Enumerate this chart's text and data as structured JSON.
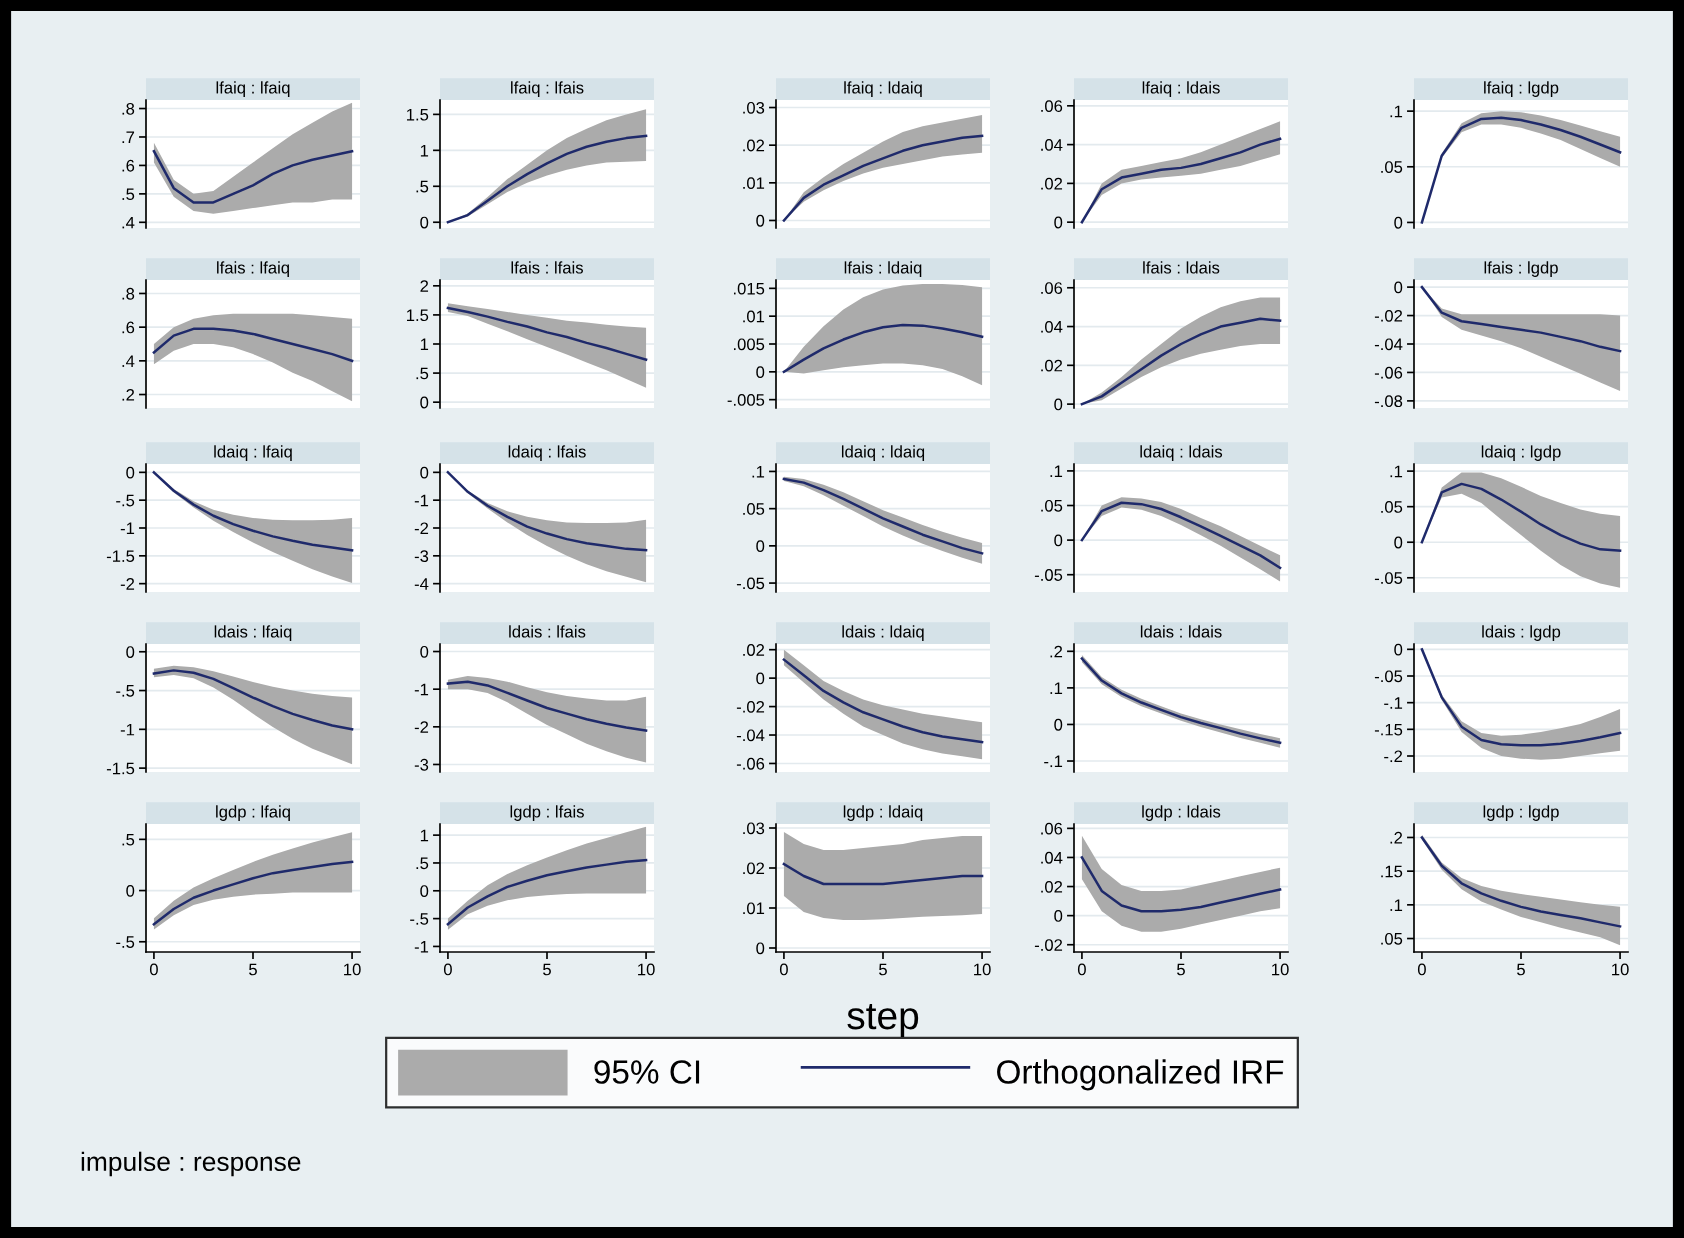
{
  "chart_data": [
    {
      "type": "line",
      "title": "lfaiq : lfaiq",
      "x": [
        0,
        1,
        2,
        3,
        4,
        5,
        6,
        7,
        8,
        9,
        10
      ],
      "xlim": [
        -0.4,
        10.4
      ],
      "xticks": [
        0,
        5,
        10
      ],
      "ylim": [
        0.38,
        0.83
      ],
      "yticks": [
        {
          "value": 0.4,
          "label": ".4"
        },
        {
          "value": 0.5,
          "label": ".5"
        },
        {
          "value": 0.6,
          "label": ".6"
        },
        {
          "value": 0.7,
          "label": ".7"
        },
        {
          "value": 0.8,
          "label": ".8"
        }
      ],
      "grid": "y",
      "tick_labels": "y",
      "series": [
        {
          "color": "#1f2a6b",
          "values": [
            0.65,
            0.52,
            0.47,
            0.47,
            0.5,
            0.53,
            0.57,
            0.6,
            0.62,
            0.635,
            0.65
          ],
          "lower": [
            0.61,
            0.49,
            0.44,
            0.43,
            0.44,
            0.45,
            0.46,
            0.47,
            0.47,
            0.48,
            0.48
          ],
          "upper": [
            0.68,
            0.55,
            0.5,
            0.51,
            0.56,
            0.61,
            0.66,
            0.71,
            0.75,
            0.79,
            0.82
          ]
        }
      ]
    },
    {
      "type": "line",
      "title": "lfaiq : lfais",
      "x": [
        0,
        1,
        2,
        3,
        4,
        5,
        6,
        7,
        8,
        9,
        10
      ],
      "xlim": [
        -0.4,
        10.4
      ],
      "xticks": [
        0,
        5,
        10
      ],
      "ylim": [
        -0.08,
        1.7
      ],
      "yticks": [
        0,
        {
          "value": 0.5,
          "label": ".5"
        },
        1,
        1.5
      ],
      "grid": "y",
      "tick_labels": "y",
      "series": [
        {
          "color": "#1f2a6b",
          "values": [
            0,
            0.1,
            0.3,
            0.5,
            0.67,
            0.82,
            0.95,
            1.05,
            1.12,
            1.17,
            1.2
          ],
          "lower": [
            0,
            0.08,
            0.25,
            0.42,
            0.55,
            0.65,
            0.73,
            0.79,
            0.83,
            0.84,
            0.85
          ],
          "upper": [
            0,
            0.12,
            0.35,
            0.6,
            0.8,
            1.0,
            1.17,
            1.3,
            1.42,
            1.5,
            1.57
          ]
        }
      ]
    },
    {
      "type": "line",
      "title": "lfaiq : ldaiq",
      "x": [
        0,
        1,
        2,
        3,
        4,
        5,
        6,
        7,
        8,
        9,
        10
      ],
      "xlim": [
        -0.4,
        10.4
      ],
      "xticks": [
        0,
        5,
        10
      ],
      "ylim": [
        -0.002,
        0.032
      ],
      "yticks": [
        0,
        {
          "value": 0.01,
          "label": ".01"
        },
        {
          "value": 0.02,
          "label": ".02"
        },
        {
          "value": 0.03,
          "label": ".03"
        }
      ],
      "grid": "y",
      "tick_labels": "y",
      "series": [
        {
          "color": "#1f2a6b",
          "values": [
            0,
            0.006,
            0.0095,
            0.012,
            0.0145,
            0.0165,
            0.0185,
            0.02,
            0.021,
            0.022,
            0.0225
          ],
          "lower": [
            0,
            0.005,
            0.008,
            0.0105,
            0.0125,
            0.014,
            0.015,
            0.016,
            0.017,
            0.0175,
            0.018
          ],
          "upper": [
            0,
            0.0075,
            0.0115,
            0.015,
            0.018,
            0.021,
            0.0235,
            0.025,
            0.026,
            0.027,
            0.028
          ]
        }
      ]
    },
    {
      "type": "line",
      "title": "lfaiq : ldais",
      "x": [
        0,
        1,
        2,
        3,
        4,
        5,
        6,
        7,
        8,
        9,
        10
      ],
      "xlim": [
        -0.4,
        10.4
      ],
      "xticks": [
        0,
        5,
        10
      ],
      "ylim": [
        -0.003,
        0.063
      ],
      "yticks": [
        0,
        {
          "value": 0.02,
          "label": ".02"
        },
        {
          "value": 0.04,
          "label": ".04"
        },
        {
          "value": 0.06,
          "label": ".06"
        }
      ],
      "grid": "y",
      "tick_labels": "y",
      "series": [
        {
          "color": "#1f2a6b",
          "values": [
            0,
            0.017,
            0.023,
            0.025,
            0.027,
            0.028,
            0.03,
            0.033,
            0.036,
            0.04,
            0.043
          ],
          "lower": [
            0,
            0.014,
            0.02,
            0.022,
            0.023,
            0.024,
            0.025,
            0.027,
            0.029,
            0.032,
            0.035
          ],
          "upper": [
            0,
            0.02,
            0.027,
            0.029,
            0.031,
            0.033,
            0.036,
            0.04,
            0.044,
            0.048,
            0.052
          ]
        }
      ]
    },
    {
      "type": "line",
      "title": "lfaiq : lgdp",
      "x": [
        0,
        1,
        2,
        3,
        4,
        5,
        6,
        7,
        8,
        9,
        10
      ],
      "xlim": [
        -0.4,
        10.4
      ],
      "xticks": [
        0,
        5,
        10
      ],
      "ylim": [
        -0.005,
        0.11
      ],
      "yticks": [
        0,
        {
          "value": 0.05,
          "label": ".05"
        },
        {
          "value": 0.1,
          "label": ".1"
        }
      ],
      "grid": "y",
      "tick_labels": "y",
      "series": [
        {
          "color": "#1f2a6b",
          "values": [
            0,
            0.06,
            0.085,
            0.093,
            0.094,
            0.092,
            0.088,
            0.083,
            0.077,
            0.07,
            0.063
          ],
          "lower": [
            0,
            0.058,
            0.081,
            0.088,
            0.088,
            0.085,
            0.08,
            0.074,
            0.066,
            0.058,
            0.05
          ],
          "upper": [
            0,
            0.062,
            0.089,
            0.098,
            0.1,
            0.099,
            0.096,
            0.092,
            0.087,
            0.082,
            0.077
          ]
        }
      ]
    },
    {
      "type": "line",
      "title": "lfais : lfaiq",
      "x": [
        0,
        1,
        2,
        3,
        4,
        5,
        6,
        7,
        8,
        9,
        10
      ],
      "xlim": [
        -0.4,
        10.4
      ],
      "xticks": [
        0,
        5,
        10
      ],
      "ylim": [
        0.12,
        0.88
      ],
      "yticks": [
        {
          "value": 0.2,
          "label": ".2"
        },
        {
          "value": 0.4,
          "label": ".4"
        },
        {
          "value": 0.6,
          "label": ".6"
        },
        {
          "value": 0.8,
          "label": ".8"
        }
      ],
      "grid": "y",
      "tick_labels": "y",
      "series": [
        {
          "color": "#1f2a6b",
          "values": [
            0.45,
            0.55,
            0.59,
            0.59,
            0.58,
            0.56,
            0.53,
            0.5,
            0.47,
            0.44,
            0.4
          ],
          "lower": [
            0.38,
            0.46,
            0.5,
            0.5,
            0.48,
            0.44,
            0.39,
            0.33,
            0.28,
            0.22,
            0.16
          ],
          "upper": [
            0.5,
            0.6,
            0.65,
            0.67,
            0.68,
            0.68,
            0.68,
            0.68,
            0.67,
            0.66,
            0.65
          ]
        }
      ]
    },
    {
      "type": "line",
      "title": "lfais : lfais",
      "x": [
        0,
        1,
        2,
        3,
        4,
        5,
        6,
        7,
        8,
        9,
        10
      ],
      "xlim": [
        -0.4,
        10.4
      ],
      "xticks": [
        0,
        5,
        10
      ],
      "ylim": [
        -0.1,
        2.1
      ],
      "yticks": [
        0,
        {
          "value": 0.5,
          "label": ".5"
        },
        1,
        1.5,
        2
      ],
      "grid": "y",
      "tick_labels": "y",
      "series": [
        {
          "color": "#1f2a6b",
          "values": [
            1.62,
            1.55,
            1.47,
            1.38,
            1.3,
            1.2,
            1.12,
            1.02,
            0.93,
            0.83,
            0.73
          ],
          "lower": [
            1.55,
            1.48,
            1.35,
            1.22,
            1.08,
            0.95,
            0.82,
            0.68,
            0.55,
            0.4,
            0.25
          ],
          "upper": [
            1.7,
            1.65,
            1.6,
            1.55,
            1.5,
            1.45,
            1.4,
            1.37,
            1.33,
            1.3,
            1.28
          ]
        }
      ]
    },
    {
      "type": "line",
      "title": "lfais : ldaiq",
      "x": [
        0,
        1,
        2,
        3,
        4,
        5,
        6,
        7,
        8,
        9,
        10
      ],
      "xlim": [
        -0.4,
        10.4
      ],
      "xticks": [
        0,
        5,
        10
      ],
      "ylim": [
        -0.0065,
        0.0165
      ],
      "yticks": [
        {
          "value": -0.005,
          "label": "-.005"
        },
        0,
        {
          "value": 0.005,
          "label": ".005"
        },
        {
          "value": 0.01,
          "label": ".01"
        },
        {
          "value": 0.015,
          "label": ".015"
        }
      ],
      "grid": "y",
      "tick_labels": "y",
      "series": [
        {
          "color": "#1f2a6b",
          "values": [
            0,
            0.0022,
            0.0042,
            0.0058,
            0.0071,
            0.008,
            0.0084,
            0.0083,
            0.0078,
            0.0071,
            0.0063
          ],
          "lower": [
            0,
            -0.0003,
            0.0003,
            0.0008,
            0.0012,
            0.0015,
            0.0015,
            0.0012,
            0.0005,
            -0.0008,
            -0.0024
          ],
          "upper": [
            0,
            0.0045,
            0.0082,
            0.0112,
            0.0134,
            0.0148,
            0.0155,
            0.0158,
            0.0158,
            0.0156,
            0.0152
          ]
        }
      ]
    },
    {
      "type": "line",
      "title": "lfais : ldais",
      "x": [
        0,
        1,
        2,
        3,
        4,
        5,
        6,
        7,
        8,
        9,
        10
      ],
      "xlim": [
        -0.4,
        10.4
      ],
      "xticks": [
        0,
        5,
        10
      ],
      "ylim": [
        -0.002,
        0.064
      ],
      "yticks": [
        0,
        {
          "value": 0.02,
          "label": ".02"
        },
        {
          "value": 0.04,
          "label": ".04"
        },
        {
          "value": 0.06,
          "label": ".06"
        }
      ],
      "grid": "y",
      "tick_labels": "y",
      "series": [
        {
          "color": "#1f2a6b",
          "values": [
            0,
            0.004,
            0.011,
            0.018,
            0.025,
            0.031,
            0.036,
            0.04,
            0.042,
            0.044,
            0.043
          ],
          "lower": [
            0,
            0.002,
            0.008,
            0.014,
            0.019,
            0.023,
            0.026,
            0.028,
            0.03,
            0.031,
            0.031
          ],
          "upper": [
            0,
            0.006,
            0.014,
            0.023,
            0.031,
            0.039,
            0.045,
            0.05,
            0.053,
            0.055,
            0.055
          ]
        }
      ]
    },
    {
      "type": "line",
      "title": "lfais : lgdp",
      "x": [
        0,
        1,
        2,
        3,
        4,
        5,
        6,
        7,
        8,
        9,
        10
      ],
      "xlim": [
        -0.4,
        10.4
      ],
      "xticks": [
        0,
        5,
        10
      ],
      "ylim": [
        -0.085,
        0.005
      ],
      "yticks": [
        0,
        {
          "value": -0.02,
          "label": "-.02"
        },
        {
          "value": -0.04,
          "label": "-.04"
        },
        {
          "value": -0.06,
          "label": "-.06"
        },
        {
          "value": -0.08,
          "label": "-.08"
        }
      ],
      "grid": "y",
      "tick_labels": "y",
      "series": [
        {
          "color": "#1f2a6b",
          "values": [
            0,
            -0.018,
            -0.024,
            -0.026,
            -0.028,
            -0.03,
            -0.032,
            -0.035,
            -0.038,
            -0.042,
            -0.045
          ],
          "lower": [
            0,
            -0.021,
            -0.03,
            -0.034,
            -0.038,
            -0.043,
            -0.049,
            -0.055,
            -0.061,
            -0.067,
            -0.073
          ],
          "upper": [
            0,
            -0.015,
            -0.019,
            -0.019,
            -0.019,
            -0.019,
            -0.019,
            -0.019,
            -0.019,
            -0.019,
            -0.02
          ]
        }
      ]
    },
    {
      "type": "line",
      "title": "ldaiq : lfaiq",
      "x": [
        0,
        1,
        2,
        3,
        4,
        5,
        6,
        7,
        8,
        9,
        10
      ],
      "xlim": [
        -0.4,
        10.4
      ],
      "xticks": [
        0,
        5,
        10
      ],
      "ylim": [
        -2.15,
        0.15
      ],
      "yticks": [
        0,
        {
          "value": -0.5,
          "label": "-.5"
        },
        -1,
        -1.5,
        -2
      ],
      "grid": "y",
      "tick_labels": "y",
      "series": [
        {
          "color": "#1f2a6b",
          "values": [
            0,
            -0.33,
            -0.58,
            -0.78,
            -0.93,
            -1.05,
            -1.15,
            -1.23,
            -1.3,
            -1.35,
            -1.4
          ],
          "lower": [
            0,
            -0.36,
            -0.63,
            -0.87,
            -1.07,
            -1.26,
            -1.43,
            -1.59,
            -1.74,
            -1.87,
            -1.99
          ],
          "upper": [
            0,
            -0.3,
            -0.52,
            -0.67,
            -0.76,
            -0.82,
            -0.85,
            -0.86,
            -0.86,
            -0.85,
            -0.82
          ]
        }
      ]
    },
    {
      "type": "line",
      "title": "ldaiq : lfais",
      "x": [
        0,
        1,
        2,
        3,
        4,
        5,
        6,
        7,
        8,
        9,
        10
      ],
      "xlim": [
        -0.4,
        10.4
      ],
      "xticks": [
        0,
        5,
        10
      ],
      "ylim": [
        -4.3,
        0.3
      ],
      "yticks": [
        0,
        -1,
        -2,
        -3,
        -4
      ],
      "grid": "y",
      "tick_labels": "y",
      "series": [
        {
          "color": "#1f2a6b",
          "values": [
            0,
            -0.7,
            -1.2,
            -1.6,
            -1.95,
            -2.2,
            -2.4,
            -2.55,
            -2.65,
            -2.75,
            -2.8
          ],
          "lower": [
            0,
            -0.75,
            -1.3,
            -1.8,
            -2.25,
            -2.65,
            -3.0,
            -3.3,
            -3.55,
            -3.75,
            -3.95
          ],
          "upper": [
            0,
            -0.65,
            -1.1,
            -1.4,
            -1.6,
            -1.72,
            -1.8,
            -1.82,
            -1.82,
            -1.8,
            -1.7
          ]
        }
      ]
    },
    {
      "type": "line",
      "title": "ldaiq : ldaiq",
      "x": [
        0,
        1,
        2,
        3,
        4,
        5,
        6,
        7,
        8,
        9,
        10
      ],
      "xlim": [
        -0.4,
        10.4
      ],
      "xticks": [
        0,
        5,
        10
      ],
      "ylim": [
        -0.062,
        0.11
      ],
      "yticks": [
        {
          "value": -0.05,
          "label": "-.05"
        },
        0,
        {
          "value": 0.05,
          "label": ".05"
        },
        {
          "value": 0.1,
          "label": ".1"
        }
      ],
      "grid": "y",
      "tick_labels": "y",
      "series": [
        {
          "color": "#1f2a6b",
          "values": [
            0.09,
            0.085,
            0.075,
            0.063,
            0.05,
            0.037,
            0.026,
            0.015,
            0.006,
            -0.003,
            -0.01
          ],
          "lower": [
            0.087,
            0.08,
            0.068,
            0.054,
            0.04,
            0.026,
            0.014,
            0.003,
            -0.007,
            -0.016,
            -0.024
          ],
          "upper": [
            0.093,
            0.09,
            0.082,
            0.072,
            0.06,
            0.048,
            0.038,
            0.028,
            0.019,
            0.011,
            0.004
          ]
        }
      ]
    },
    {
      "type": "line",
      "title": "ldaiq : ldais",
      "x": [
        0,
        1,
        2,
        3,
        4,
        5,
        6,
        7,
        8,
        9,
        10
      ],
      "xlim": [
        -0.4,
        10.4
      ],
      "xticks": [
        0,
        5,
        10
      ],
      "ylim": [
        -0.075,
        0.11
      ],
      "yticks": [
        {
          "value": -0.05,
          "label": "-.05"
        },
        0,
        {
          "value": 0.05,
          "label": ".05"
        },
        {
          "value": 0.1,
          "label": ".1"
        }
      ],
      "grid": "y",
      "tick_labels": "y",
      "series": [
        {
          "color": "#1f2a6b",
          "values": [
            0,
            0.042,
            0.054,
            0.052,
            0.045,
            0.033,
            0.02,
            0.006,
            -0.008,
            -0.022,
            -0.04
          ],
          "lower": [
            0,
            0.035,
            0.047,
            0.044,
            0.035,
            0.022,
            0.007,
            -0.008,
            -0.025,
            -0.042,
            -0.06
          ],
          "upper": [
            0,
            0.05,
            0.062,
            0.06,
            0.055,
            0.045,
            0.032,
            0.02,
            0.006,
            -0.008,
            -0.022
          ]
        }
      ]
    },
    {
      "type": "line",
      "title": "ldaiq : lgdp",
      "x": [
        0,
        1,
        2,
        3,
        4,
        5,
        6,
        7,
        8,
        9,
        10
      ],
      "xlim": [
        -0.4,
        10.4
      ],
      "xticks": [
        0,
        5,
        10
      ],
      "ylim": [
        -0.07,
        0.11
      ],
      "yticks": [
        {
          "value": -0.05,
          "label": "-.05"
        },
        0,
        {
          "value": 0.05,
          "label": ".05"
        },
        {
          "value": 0.1,
          "label": ".1"
        }
      ],
      "grid": "y",
      "tick_labels": "y",
      "series": [
        {
          "color": "#1f2a6b",
          "values": [
            0,
            0.07,
            0.082,
            0.075,
            0.06,
            0.043,
            0.025,
            0.01,
            -0.002,
            -0.01,
            -0.012
          ],
          "lower": [
            0,
            0.063,
            0.068,
            0.055,
            0.032,
            0.01,
            -0.012,
            -0.032,
            -0.048,
            -0.058,
            -0.064
          ],
          "upper": [
            0,
            0.077,
            0.098,
            0.098,
            0.09,
            0.078,
            0.065,
            0.055,
            0.046,
            0.04,
            0.037
          ]
        }
      ]
    },
    {
      "type": "line",
      "title": "ldais : lfaiq",
      "x": [
        0,
        1,
        2,
        3,
        4,
        5,
        6,
        7,
        8,
        9,
        10
      ],
      "xlim": [
        -0.4,
        10.4
      ],
      "xticks": [
        0,
        5,
        10
      ],
      "ylim": [
        -1.55,
        0.1
      ],
      "yticks": [
        0,
        {
          "value": -0.5,
          "label": "-.5"
        },
        -1,
        -1.5
      ],
      "grid": "y",
      "tick_labels": "y",
      "series": [
        {
          "color": "#1f2a6b",
          "values": [
            -0.28,
            -0.24,
            -0.27,
            -0.35,
            -0.47,
            -0.59,
            -0.7,
            -0.8,
            -0.88,
            -0.95,
            -1.0
          ],
          "lower": [
            -0.33,
            -0.3,
            -0.34,
            -0.46,
            -0.62,
            -0.8,
            -0.97,
            -1.12,
            -1.25,
            -1.35,
            -1.45
          ],
          "upper": [
            -0.22,
            -0.18,
            -0.2,
            -0.25,
            -0.32,
            -0.39,
            -0.45,
            -0.5,
            -0.54,
            -0.57,
            -0.59
          ]
        }
      ]
    },
    {
      "type": "line",
      "title": "ldais : lfais",
      "x": [
        0,
        1,
        2,
        3,
        4,
        5,
        6,
        7,
        8,
        9,
        10
      ],
      "xlim": [
        -0.4,
        10.4
      ],
      "xticks": [
        0,
        5,
        10
      ],
      "ylim": [
        -3.2,
        0.2
      ],
      "yticks": [
        0,
        -1,
        -2,
        -3
      ],
      "grid": "y",
      "tick_labels": "y",
      "series": [
        {
          "color": "#1f2a6b",
          "values": [
            -0.85,
            -0.8,
            -0.9,
            -1.1,
            -1.3,
            -1.5,
            -1.65,
            -1.8,
            -1.92,
            -2.02,
            -2.1
          ],
          "lower": [
            -1.0,
            -1.0,
            -1.1,
            -1.35,
            -1.65,
            -1.95,
            -2.2,
            -2.45,
            -2.65,
            -2.82,
            -2.95
          ],
          "upper": [
            -0.75,
            -0.65,
            -0.7,
            -0.8,
            -0.95,
            -1.08,
            -1.18,
            -1.25,
            -1.3,
            -1.3,
            -1.2
          ]
        }
      ]
    },
    {
      "type": "line",
      "title": "ldais : ldaiq",
      "x": [
        0,
        1,
        2,
        3,
        4,
        5,
        6,
        7,
        8,
        9,
        10
      ],
      "xlim": [
        -0.4,
        10.4
      ],
      "xticks": [
        0,
        5,
        10
      ],
      "ylim": [
        -0.066,
        0.024
      ],
      "yticks": [
        {
          "value": 0.02,
          "label": ".02"
        },
        0,
        {
          "value": -0.02,
          "label": "-.02"
        },
        {
          "value": -0.04,
          "label": "-.04"
        },
        {
          "value": -0.06,
          "label": "-.06"
        }
      ],
      "grid": "y",
      "tick_labels": "y",
      "series": [
        {
          "color": "#1f2a6b",
          "values": [
            0.013,
            0.002,
            -0.009,
            -0.017,
            -0.024,
            -0.029,
            -0.034,
            -0.038,
            -0.041,
            -0.043,
            -0.045
          ],
          "lower": [
            0.009,
            -0.003,
            -0.015,
            -0.025,
            -0.034,
            -0.04,
            -0.046,
            -0.05,
            -0.053,
            -0.055,
            -0.057
          ],
          "upper": [
            0.02,
            0.009,
            -0.002,
            -0.009,
            -0.015,
            -0.019,
            -0.022,
            -0.025,
            -0.027,
            -0.029,
            -0.031
          ]
        }
      ]
    },
    {
      "type": "line",
      "title": "ldais : ldais",
      "x": [
        0,
        1,
        2,
        3,
        4,
        5,
        6,
        7,
        8,
        9,
        10
      ],
      "xlim": [
        -0.4,
        10.4
      ],
      "xticks": [
        0,
        5,
        10
      ],
      "ylim": [
        -0.13,
        0.22
      ],
      "yticks": [
        {
          "value": 0.2,
          "label": ".2"
        },
        {
          "value": 0.1,
          "label": ".1"
        },
        0,
        {
          "value": -0.1,
          "label": "-.1"
        }
      ],
      "grid": "y",
      "tick_labels": "y",
      "series": [
        {
          "color": "#1f2a6b",
          "values": [
            0.18,
            0.12,
            0.085,
            0.06,
            0.04,
            0.02,
            0.004,
            -0.01,
            -0.025,
            -0.038,
            -0.05
          ],
          "lower": [
            0.17,
            0.11,
            0.075,
            0.05,
            0.03,
            0.01,
            -0.007,
            -0.022,
            -0.037,
            -0.05,
            -0.064
          ],
          "upper": [
            0.19,
            0.13,
            0.095,
            0.07,
            0.05,
            0.03,
            0.014,
            0.0,
            -0.013,
            -0.026,
            -0.038
          ]
        }
      ]
    },
    {
      "type": "line",
      "title": "ldais : lgdp",
      "x": [
        0,
        1,
        2,
        3,
        4,
        5,
        6,
        7,
        8,
        9,
        10
      ],
      "xlim": [
        -0.4,
        10.4
      ],
      "xticks": [
        0,
        5,
        10
      ],
      "ylim": [
        -0.23,
        0.01
      ],
      "yticks": [
        0,
        {
          "value": -0.05,
          "label": "-.05"
        },
        {
          "value": -0.1,
          "label": "-.1"
        },
        {
          "value": -0.15,
          "label": "-.15"
        },
        {
          "value": -0.2,
          "label": "-.2"
        }
      ],
      "grid": "y",
      "tick_labels": "y",
      "series": [
        {
          "color": "#1f2a6b",
          "values": [
            0,
            -0.09,
            -0.145,
            -0.17,
            -0.178,
            -0.18,
            -0.18,
            -0.177,
            -0.172,
            -0.165,
            -0.157
          ],
          "lower": [
            0,
            -0.095,
            -0.155,
            -0.185,
            -0.2,
            -0.205,
            -0.207,
            -0.205,
            -0.2,
            -0.195,
            -0.19
          ],
          "upper": [
            0,
            -0.085,
            -0.135,
            -0.157,
            -0.162,
            -0.16,
            -0.155,
            -0.148,
            -0.14,
            -0.127,
            -0.112
          ]
        }
      ]
    },
    {
      "type": "line",
      "title": "lgdp : lfaiq",
      "x": [
        0,
        1,
        2,
        3,
        4,
        5,
        6,
        7,
        8,
        9,
        10
      ],
      "xlim": [
        -0.4,
        10.4
      ],
      "xticks": [
        0,
        5,
        10
      ],
      "ylim": [
        -0.6,
        0.65
      ],
      "yticks": [
        {
          "value": 0.5,
          "label": ".5"
        },
        0,
        {
          "value": -0.5,
          "label": "-.5"
        }
      ],
      "grid": "y",
      "series": [
        {
          "color": "#1f2a6b",
          "values": [
            -0.33,
            -0.18,
            -0.07,
            0,
            0.06,
            0.12,
            0.17,
            0.2,
            0.23,
            0.26,
            0.28
          ],
          "lower": [
            -0.38,
            -0.24,
            -0.14,
            -0.09,
            -0.06,
            -0.04,
            -0.03,
            -0.02,
            -0.02,
            -0.02,
            -0.02
          ],
          "upper": [
            -0.27,
            -0.1,
            0.03,
            0.12,
            0.2,
            0.28,
            0.35,
            0.41,
            0.47,
            0.52,
            0.57
          ]
        }
      ]
    },
    {
      "type": "line",
      "title": "lgdp : lfais",
      "x": [
        0,
        1,
        2,
        3,
        4,
        5,
        6,
        7,
        8,
        9,
        10
      ],
      "xlim": [
        -0.4,
        10.4
      ],
      "xticks": [
        0,
        5,
        10
      ],
      "ylim": [
        -1.1,
        1.2
      ],
      "yticks": [
        1,
        {
          "value": 0.5,
          "label": ".5"
        },
        0,
        {
          "value": -0.5,
          "label": "-.5"
        },
        -1
      ],
      "grid": "y",
      "series": [
        {
          "color": "#1f2a6b",
          "values": [
            -0.6,
            -0.3,
            -0.1,
            0.07,
            0.18,
            0.28,
            0.35,
            0.42,
            0.47,
            0.52,
            0.55
          ],
          "lower": [
            -0.7,
            -0.42,
            -0.27,
            -0.17,
            -0.11,
            -0.08,
            -0.06,
            -0.05,
            -0.05,
            -0.05,
            -0.05
          ],
          "upper": [
            -0.5,
            -0.18,
            0.1,
            0.3,
            0.46,
            0.6,
            0.73,
            0.85,
            0.95,
            1.05,
            1.15
          ]
        }
      ]
    },
    {
      "type": "line",
      "title": "lgdp : ldaiq",
      "xlabel": "step",
      "legend": "bottom",
      "annotations": [
        "95% CI",
        "impulse : response"
      ],
      "x": [
        0,
        1,
        2,
        3,
        4,
        5,
        6,
        7,
        8,
        9,
        10
      ],
      "xlim": [
        -0.4,
        10.4
      ],
      "xticks": [
        0,
        5,
        10
      ],
      "ylim": [
        -0.001,
        0.031
      ],
      "yticks": [
        0,
        {
          "value": 0.01,
          "label": ".01"
        },
        {
          "value": 0.02,
          "label": ".02"
        },
        {
          "value": 0.03,
          "label": ".03"
        }
      ],
      "grid": "y",
      "series": [
        {
          "name": "Orthogonalized IRF",
          "color": "#1f2a6b",
          "values": [
            0.021,
            0.018,
            0.016,
            0.016,
            0.016,
            0.016,
            0.0165,
            0.017,
            0.0175,
            0.018,
            0.018
          ],
          "lower": [
            0.013,
            0.009,
            0.0075,
            0.007,
            0.007,
            0.0072,
            0.0075,
            0.0078,
            0.008,
            0.0082,
            0.0085
          ],
          "upper": [
            0.029,
            0.026,
            0.0245,
            0.0245,
            0.025,
            0.0255,
            0.026,
            0.027,
            0.0275,
            0.028,
            0.028
          ]
        }
      ]
    },
    {
      "type": "line",
      "title": "lgdp : ldais",
      "x": [
        0,
        1,
        2,
        3,
        4,
        5,
        6,
        7,
        8,
        9,
        10
      ],
      "xlim": [
        -0.4,
        10.4
      ],
      "xticks": [
        0,
        5,
        10
      ],
      "ylim": [
        -0.025,
        0.063
      ],
      "yticks": [
        {
          "value": -0.02,
          "label": "-.02"
        },
        0,
        {
          "value": 0.02,
          "label": ".02"
        },
        {
          "value": 0.04,
          "label": ".04"
        },
        {
          "value": 0.06,
          "label": ".06"
        }
      ],
      "grid": "y",
      "series": [
        {
          "color": "#1f2a6b",
          "values": [
            0.04,
            0.017,
            0.007,
            0.003,
            0.003,
            0.004,
            0.006,
            0.009,
            0.012,
            0.015,
            0.018
          ],
          "lower": [
            0.025,
            0.003,
            -0.007,
            -0.011,
            -0.011,
            -0.009,
            -0.006,
            -0.003,
            0.0,
            0.003,
            0.005
          ],
          "upper": [
            0.055,
            0.032,
            0.021,
            0.017,
            0.017,
            0.018,
            0.021,
            0.024,
            0.027,
            0.03,
            0.033
          ]
        }
      ]
    },
    {
      "type": "line",
      "title": "lgdp : lgdp",
      "x": [
        0,
        1,
        2,
        3,
        4,
        5,
        6,
        7,
        8,
        9,
        10
      ],
      "xlim": [
        -0.4,
        10.4
      ],
      "xticks": [
        0,
        5,
        10
      ],
      "ylim": [
        0.03,
        0.22
      ],
      "yticks": [
        {
          "value": 0.05,
          "label": ".05"
        },
        {
          "value": 0.1,
          "label": ".1"
        },
        {
          "value": 0.15,
          "label": ".15"
        },
        {
          "value": 0.2,
          "label": ".2"
        }
      ],
      "grid": "y",
      "series": [
        {
          "color": "#1f2a6b",
          "values": [
            0.2,
            0.158,
            0.132,
            0.117,
            0.106,
            0.097,
            0.09,
            0.085,
            0.08,
            0.074,
            0.068
          ],
          "lower": [
            0.197,
            0.152,
            0.123,
            0.105,
            0.093,
            0.082,
            0.074,
            0.066,
            0.059,
            0.052,
            0.04
          ],
          "upper": [
            0.204,
            0.163,
            0.14,
            0.128,
            0.121,
            0.116,
            0.112,
            0.108,
            0.104,
            0.1,
            0.097
          ]
        }
      ]
    }
  ]
}
